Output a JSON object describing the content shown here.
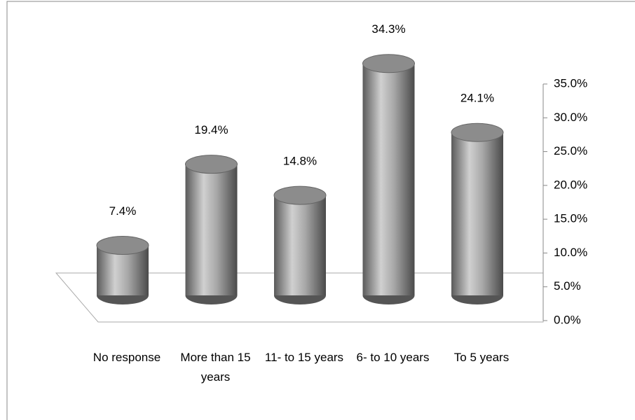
{
  "chart_data": {
    "type": "bar",
    "categories": [
      "No response",
      "More than 15 years",
      "11- to 15 years",
      "6- to 10 years",
      "To 5 years"
    ],
    "values": [
      7.4,
      19.4,
      14.8,
      34.3,
      24.1
    ],
    "value_labels": [
      "7.4%",
      "19.4%",
      "14.8%",
      "34.3%",
      "24.1%"
    ],
    "color": "#8c8c8c",
    "ylim": [
      0,
      35
    ],
    "yticks": [
      {
        "value": 0,
        "label": "0.0%"
      },
      {
        "value": 5,
        "label": "5.0%"
      },
      {
        "value": 10,
        "label": "10.0%"
      },
      {
        "value": 15,
        "label": "15.0%"
      },
      {
        "value": 20,
        "label": "20.0%"
      },
      {
        "value": 25,
        "label": "25.0%"
      },
      {
        "value": 30,
        "label": "30.0%"
      },
      {
        "value": 35,
        "label": "35.0%"
      }
    ]
  }
}
